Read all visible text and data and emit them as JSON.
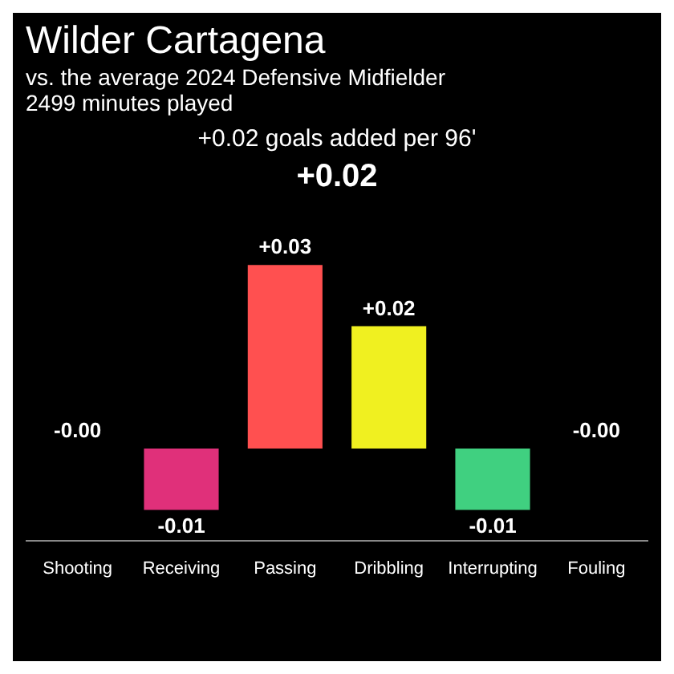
{
  "chart_data": {
    "type": "bar",
    "title": "Wilder Cartagena",
    "subtitle": "vs. the average 2024 Defensive Midfielder",
    "annotations": [
      "2499 minutes played",
      "+0.02 goals added per 96'",
      "+0.02"
    ],
    "categories": [
      "Shooting",
      "Receiving",
      "Passing",
      "Dribbling",
      "Interrupting",
      "Fouling"
    ],
    "values": [
      0,
      -0.01,
      0.03,
      0.02,
      -0.01,
      0
    ],
    "value_labels": [
      "-0.00",
      "-0.01",
      "+0.03",
      "+0.02",
      "-0.01",
      "-0.00"
    ],
    "colors": [
      "#9b30d9",
      "#e0307a",
      "#ff5050",
      "#f0f020",
      "#40d080",
      "#30a8e0"
    ],
    "legend": false
  }
}
